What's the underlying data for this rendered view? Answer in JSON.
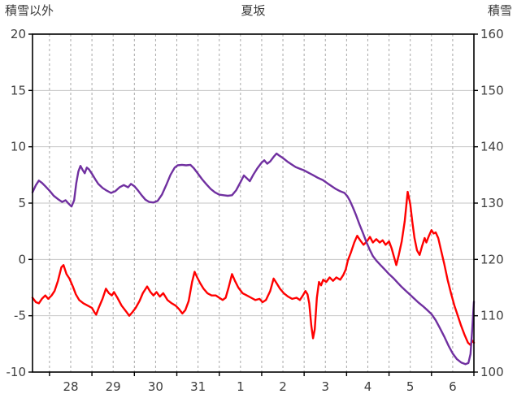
{
  "chart_data": {
    "type": "line",
    "title": "夏坂",
    "left_axis": {
      "label": "積雪以外",
      "min": -10,
      "max": 20,
      "step": 5,
      "ticks": [
        20,
        15,
        10,
        5,
        0,
        -5,
        -10
      ]
    },
    "right_axis": {
      "label": "積雪",
      "min": 100,
      "max": 160,
      "step": 10,
      "ticks": [
        160,
        150,
        140,
        130,
        120,
        110,
        100
      ]
    },
    "x_axis": {
      "min": 27.6,
      "max": 38.0,
      "grid_step": 0.5,
      "tick_labels": [
        {
          "pos": 28.5,
          "label": "28"
        },
        {
          "pos": 29.5,
          "label": "29"
        },
        {
          "pos": 30.5,
          "label": "30"
        },
        {
          "pos": 31.5,
          "label": "31"
        },
        {
          "pos": 32.5,
          "label": "1"
        },
        {
          "pos": 33.5,
          "label": "2"
        },
        {
          "pos": 34.5,
          "label": "3"
        },
        {
          "pos": 35.5,
          "label": "4"
        },
        {
          "pos": 36.5,
          "label": "5"
        },
        {
          "pos": 37.5,
          "label": "6"
        }
      ]
    },
    "grid": {
      "h_color": "#c6c6c6",
      "v_color": "#a8a8a8",
      "v_dashed": true
    },
    "legend": "none",
    "series": [
      {
        "name": "積雪以外",
        "axis": "left",
        "color": "#ff0000",
        "width": 2.4,
        "points": [
          [
            27.6,
            -3.4
          ],
          [
            27.68,
            -3.8
          ],
          [
            27.75,
            -3.9
          ],
          [
            27.82,
            -3.5
          ],
          [
            27.9,
            -3.2
          ],
          [
            27.97,
            -3.5
          ],
          [
            28.05,
            -3.2
          ],
          [
            28.12,
            -2.8
          ],
          [
            28.2,
            -1.9
          ],
          [
            28.28,
            -0.7
          ],
          [
            28.33,
            -0.5
          ],
          [
            28.4,
            -1.3
          ],
          [
            28.47,
            -1.7
          ],
          [
            28.55,
            -2.4
          ],
          [
            28.62,
            -3.1
          ],
          [
            28.7,
            -3.6
          ],
          [
            28.8,
            -3.9
          ],
          [
            28.9,
            -4.1
          ],
          [
            29.0,
            -4.3
          ],
          [
            29.06,
            -4.7
          ],
          [
            29.1,
            -4.9
          ],
          [
            29.16,
            -4.3
          ],
          [
            29.25,
            -3.5
          ],
          [
            29.33,
            -2.6
          ],
          [
            29.4,
            -3.0
          ],
          [
            29.47,
            -3.2
          ],
          [
            29.52,
            -2.9
          ],
          [
            29.6,
            -3.4
          ],
          [
            29.7,
            -4.1
          ],
          [
            29.8,
            -4.6
          ],
          [
            29.88,
            -5.0
          ],
          [
            29.95,
            -4.7
          ],
          [
            30.03,
            -4.3
          ],
          [
            30.12,
            -3.7
          ],
          [
            30.2,
            -3.0
          ],
          [
            30.3,
            -2.4
          ],
          [
            30.38,
            -2.9
          ],
          [
            30.45,
            -3.2
          ],
          [
            30.52,
            -2.9
          ],
          [
            30.6,
            -3.3
          ],
          [
            30.68,
            -3.0
          ],
          [
            30.78,
            -3.6
          ],
          [
            30.88,
            -3.9
          ],
          [
            30.97,
            -4.1
          ],
          [
            31.05,
            -4.4
          ],
          [
            31.13,
            -4.8
          ],
          [
            31.2,
            -4.5
          ],
          [
            31.28,
            -3.7
          ],
          [
            31.36,
            -2.0
          ],
          [
            31.42,
            -1.1
          ],
          [
            31.48,
            -1.6
          ],
          [
            31.55,
            -2.1
          ],
          [
            31.63,
            -2.6
          ],
          [
            31.72,
            -3.0
          ],
          [
            31.82,
            -3.2
          ],
          [
            31.92,
            -3.2
          ],
          [
            32.0,
            -3.4
          ],
          [
            32.08,
            -3.6
          ],
          [
            32.15,
            -3.4
          ],
          [
            32.22,
            -2.5
          ],
          [
            32.3,
            -1.3
          ],
          [
            32.37,
            -1.9
          ],
          [
            32.45,
            -2.5
          ],
          [
            32.55,
            -3.0
          ],
          [
            32.65,
            -3.2
          ],
          [
            32.75,
            -3.4
          ],
          [
            32.85,
            -3.6
          ],
          [
            32.95,
            -3.5
          ],
          [
            33.02,
            -3.8
          ],
          [
            33.1,
            -3.6
          ],
          [
            33.2,
            -2.8
          ],
          [
            33.28,
            -1.7
          ],
          [
            33.35,
            -2.1
          ],
          [
            33.43,
            -2.6
          ],
          [
            33.52,
            -3.0
          ],
          [
            33.62,
            -3.3
          ],
          [
            33.72,
            -3.5
          ],
          [
            33.82,
            -3.4
          ],
          [
            33.9,
            -3.6
          ],
          [
            33.97,
            -3.2
          ],
          [
            34.03,
            -2.8
          ],
          [
            34.08,
            -3.1
          ],
          [
            34.12,
            -3.9
          ],
          [
            34.17,
            -5.9
          ],
          [
            34.21,
            -7.0
          ],
          [
            34.25,
            -6.2
          ],
          [
            34.3,
            -3.4
          ],
          [
            34.35,
            -2.0
          ],
          [
            34.4,
            -2.3
          ],
          [
            34.45,
            -1.8
          ],
          [
            34.52,
            -2.0
          ],
          [
            34.6,
            -1.6
          ],
          [
            34.68,
            -1.9
          ],
          [
            34.76,
            -1.6
          ],
          [
            34.85,
            -1.8
          ],
          [
            34.92,
            -1.4
          ],
          [
            34.98,
            -0.9
          ],
          [
            35.03,
            -0.1
          ],
          [
            35.1,
            0.6
          ],
          [
            35.18,
            1.5
          ],
          [
            35.25,
            2.1
          ],
          [
            35.32,
            1.7
          ],
          [
            35.4,
            1.3
          ],
          [
            35.48,
            1.6
          ],
          [
            35.55,
            2.0
          ],
          [
            35.62,
            1.5
          ],
          [
            35.7,
            1.8
          ],
          [
            35.78,
            1.5
          ],
          [
            35.85,
            1.7
          ],
          [
            35.92,
            1.3
          ],
          [
            36.0,
            1.6
          ],
          [
            36.06,
            1.0
          ],
          [
            36.12,
            0.2
          ],
          [
            36.17,
            -0.5
          ],
          [
            36.23,
            0.4
          ],
          [
            36.3,
            1.6
          ],
          [
            36.37,
            3.4
          ],
          [
            36.44,
            6.0
          ],
          [
            36.5,
            4.9
          ],
          [
            36.55,
            3.3
          ],
          [
            36.6,
            1.9
          ],
          [
            36.66,
            0.8
          ],
          [
            36.72,
            0.4
          ],
          [
            36.78,
            1.2
          ],
          [
            36.84,
            1.9
          ],
          [
            36.88,
            1.5
          ],
          [
            36.94,
            2.1
          ],
          [
            37.0,
            2.6
          ],
          [
            37.05,
            2.3
          ],
          [
            37.1,
            2.4
          ],
          [
            37.16,
            1.9
          ],
          [
            37.22,
            0.9
          ],
          [
            37.3,
            -0.4
          ],
          [
            37.38,
            -1.8
          ],
          [
            37.46,
            -3.0
          ],
          [
            37.54,
            -4.1
          ],
          [
            37.62,
            -5.0
          ],
          [
            37.7,
            -5.9
          ],
          [
            37.78,
            -6.7
          ],
          [
            37.86,
            -7.4
          ],
          [
            37.92,
            -7.6
          ],
          [
            37.96,
            -7.2
          ],
          [
            38.0,
            -7.4
          ]
        ]
      },
      {
        "name": "積雪",
        "axis": "right",
        "color": "#7030a0",
        "width": 2.4,
        "points": [
          [
            27.6,
            131.9
          ],
          [
            27.68,
            133.2
          ],
          [
            27.75,
            134.0
          ],
          [
            27.82,
            133.6
          ],
          [
            27.9,
            133.0
          ],
          [
            28.0,
            132.2
          ],
          [
            28.1,
            131.3
          ],
          [
            28.2,
            130.7
          ],
          [
            28.3,
            130.2
          ],
          [
            28.38,
            130.5
          ],
          [
            28.45,
            129.9
          ],
          [
            28.52,
            129.4
          ],
          [
            28.58,
            130.5
          ],
          [
            28.63,
            133.5
          ],
          [
            28.68,
            135.6
          ],
          [
            28.73,
            136.6
          ],
          [
            28.78,
            135.9
          ],
          [
            28.83,
            135.3
          ],
          [
            28.88,
            136.3
          ],
          [
            28.93,
            136.0
          ],
          [
            29.0,
            135.2
          ],
          [
            29.08,
            134.2
          ],
          [
            29.15,
            133.4
          ],
          [
            29.25,
            132.7
          ],
          [
            29.35,
            132.2
          ],
          [
            29.45,
            131.8
          ],
          [
            29.55,
            132.1
          ],
          [
            29.65,
            132.8
          ],
          [
            29.75,
            133.2
          ],
          [
            29.85,
            132.8
          ],
          [
            29.92,
            133.4
          ],
          [
            30.0,
            133.0
          ],
          [
            30.08,
            132.3
          ],
          [
            30.17,
            131.4
          ],
          [
            30.26,
            130.6
          ],
          [
            30.35,
            130.2
          ],
          [
            30.45,
            130.1
          ],
          [
            30.55,
            130.4
          ],
          [
            30.65,
            131.5
          ],
          [
            30.75,
            133.2
          ],
          [
            30.85,
            135.0
          ],
          [
            30.95,
            136.3
          ],
          [
            31.02,
            136.7
          ],
          [
            31.12,
            136.8
          ],
          [
            31.22,
            136.7
          ],
          [
            31.32,
            136.8
          ],
          [
            31.4,
            136.2
          ],
          [
            31.5,
            135.2
          ],
          [
            31.6,
            134.2
          ],
          [
            31.7,
            133.3
          ],
          [
            31.8,
            132.5
          ],
          [
            31.9,
            131.9
          ],
          [
            32.0,
            131.5
          ],
          [
            32.1,
            131.4
          ],
          [
            32.2,
            131.3
          ],
          [
            32.3,
            131.4
          ],
          [
            32.4,
            132.3
          ],
          [
            32.5,
            133.7
          ],
          [
            32.58,
            134.9
          ],
          [
            32.65,
            134.4
          ],
          [
            32.72,
            133.9
          ],
          [
            32.8,
            135.0
          ],
          [
            32.9,
            136.2
          ],
          [
            33.0,
            137.2
          ],
          [
            33.06,
            137.6
          ],
          [
            33.13,
            137.0
          ],
          [
            33.2,
            137.4
          ],
          [
            33.28,
            138.2
          ],
          [
            33.35,
            138.8
          ],
          [
            33.42,
            138.4
          ],
          [
            33.5,
            138.0
          ],
          [
            33.6,
            137.4
          ],
          [
            33.7,
            136.9
          ],
          [
            33.8,
            136.4
          ],
          [
            33.9,
            136.1
          ],
          [
            34.0,
            135.8
          ],
          [
            34.1,
            135.4
          ],
          [
            34.2,
            135.0
          ],
          [
            34.32,
            134.5
          ],
          [
            34.44,
            134.1
          ],
          [
            34.55,
            133.5
          ],
          [
            34.65,
            133.0
          ],
          [
            34.75,
            132.5
          ],
          [
            34.85,
            132.1
          ],
          [
            34.95,
            131.8
          ],
          [
            35.02,
            131.2
          ],
          [
            35.08,
            130.4
          ],
          [
            35.15,
            129.2
          ],
          [
            35.22,
            127.9
          ],
          [
            35.3,
            126.3
          ],
          [
            35.38,
            124.8
          ],
          [
            35.46,
            123.2
          ],
          [
            35.54,
            121.8
          ],
          [
            35.62,
            120.6
          ],
          [
            35.7,
            119.8
          ],
          [
            35.8,
            119.0
          ],
          [
            35.9,
            118.2
          ],
          [
            36.0,
            117.4
          ],
          [
            36.1,
            116.7
          ],
          [
            36.2,
            115.9
          ],
          [
            36.3,
            115.1
          ],
          [
            36.4,
            114.4
          ],
          [
            36.5,
            113.7
          ],
          [
            36.6,
            113.0
          ],
          [
            36.7,
            112.3
          ],
          [
            36.8,
            111.7
          ],
          [
            36.9,
            111.0
          ],
          [
            37.0,
            110.3
          ],
          [
            37.1,
            109.2
          ],
          [
            37.2,
            107.8
          ],
          [
            37.3,
            106.3
          ],
          [
            37.4,
            104.7
          ],
          [
            37.5,
            103.3
          ],
          [
            37.6,
            102.3
          ],
          [
            37.7,
            101.7
          ],
          [
            37.8,
            101.4
          ],
          [
            37.87,
            101.6
          ],
          [
            37.92,
            103.2
          ],
          [
            37.96,
            107.5
          ],
          [
            38.0,
            112.5
          ]
        ]
      }
    ]
  }
}
